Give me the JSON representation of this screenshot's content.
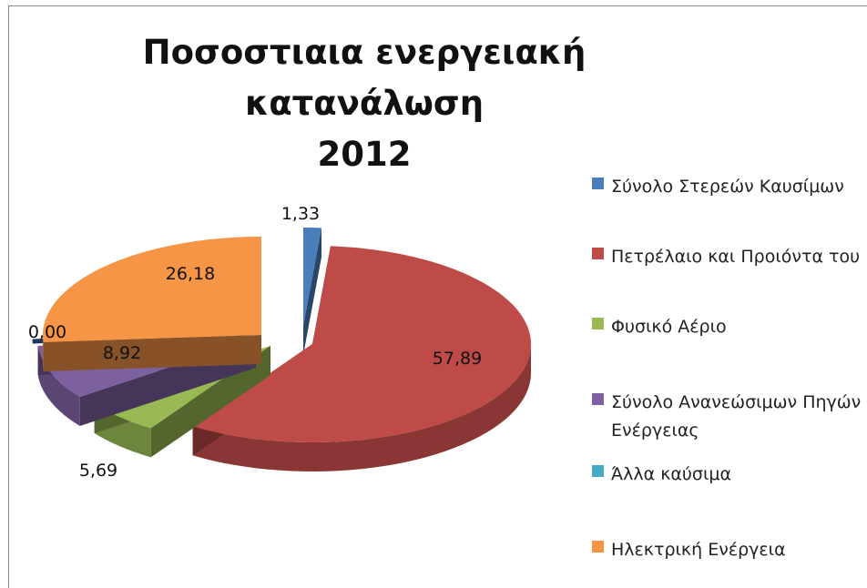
{
  "chart_data": {
    "type": "pie",
    "variant": "3d-exploded",
    "title": [
      "Ποσοστιαια ενεργειακή κατανάλωση",
      "2012"
    ],
    "slices": [
      {
        "name": "Σύνολο Στερεών Καυσίμων",
        "value": 1.33,
        "label": "1,33",
        "color": "#4a7ebb"
      },
      {
        "name": "Πετρέλαιο και Προιόντα του",
        "value": 57.89,
        "label": "57,89",
        "color": "#be4b48"
      },
      {
        "name": "Φυσικό Αέριο",
        "value": 5.69,
        "label": "5,69",
        "color": "#98b954"
      },
      {
        "name": "Σύνολο Ανανεώσιμων Πηγών Ενέργειας",
        "value": 8.92,
        "label": "8,92",
        "color": "#7d60a0"
      },
      {
        "name": "Άλλα καύσιμα",
        "value": 0.0,
        "label": "0,00",
        "color": "#46aac5"
      },
      {
        "name": "Ηλεκτρική Ενέργεια",
        "value": 26.18,
        "label": "26,18",
        "color": "#f69546"
      }
    ],
    "legend": {
      "placement": "right",
      "items": [
        "Σύνολο Στερεών Καυσίμων",
        "Πετρέλαιο και Προιόντα του",
        "Φυσικό Αέριο",
        "Σύνολο Ανανεώσιμων Πηγών Ενέργειας",
        "Άλλα καύσιμα",
        "Ηλεκτρική Ενέργεια"
      ]
    }
  }
}
